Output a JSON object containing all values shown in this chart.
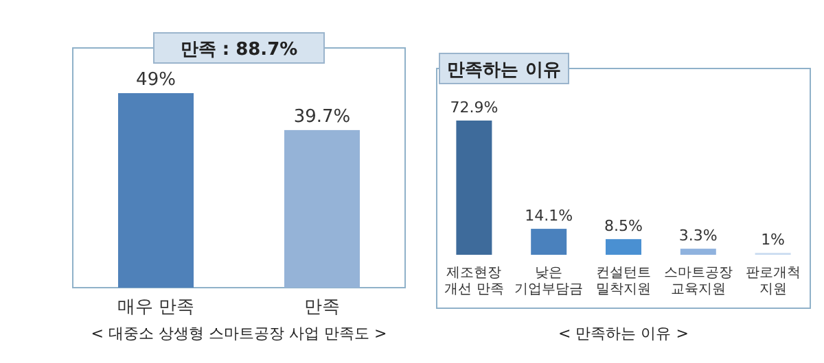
{
  "chart_data": [
    {
      "type": "bar",
      "title": "만족 : 88.7%",
      "categories": [
        "매우 만족",
        "만족"
      ],
      "values": [
        49,
        39.7
      ],
      "colors": [
        "#4f81b9",
        "#95b3d7"
      ],
      "value_labels": [
        "49%",
        "39.7%"
      ],
      "annotations": [
        "< 대중소 상생형 스마트공장 사업 만족도 >"
      ]
    },
    {
      "type": "bar",
      "title": "만족하는 이유",
      "categories": [
        "제조현장\n개선 만족",
        "낮은\n기업부담금",
        "컨설턴트\n밀착지원",
        "스마트공장\n교육지원",
        "판로개척\n지원"
      ],
      "values": [
        72.9,
        14.1,
        8.5,
        3.3,
        1
      ],
      "colors": [
        "#3e6b9b",
        "#4a81bd",
        "#4a90d2",
        "#8fb2de",
        "#c8dbf0"
      ],
      "value_labels": [
        "72.9%",
        "14.1%",
        "8.5%",
        "3.3%",
        "1%"
      ],
      "annotations": [
        "< 만족하는 이유 >"
      ]
    }
  ]
}
